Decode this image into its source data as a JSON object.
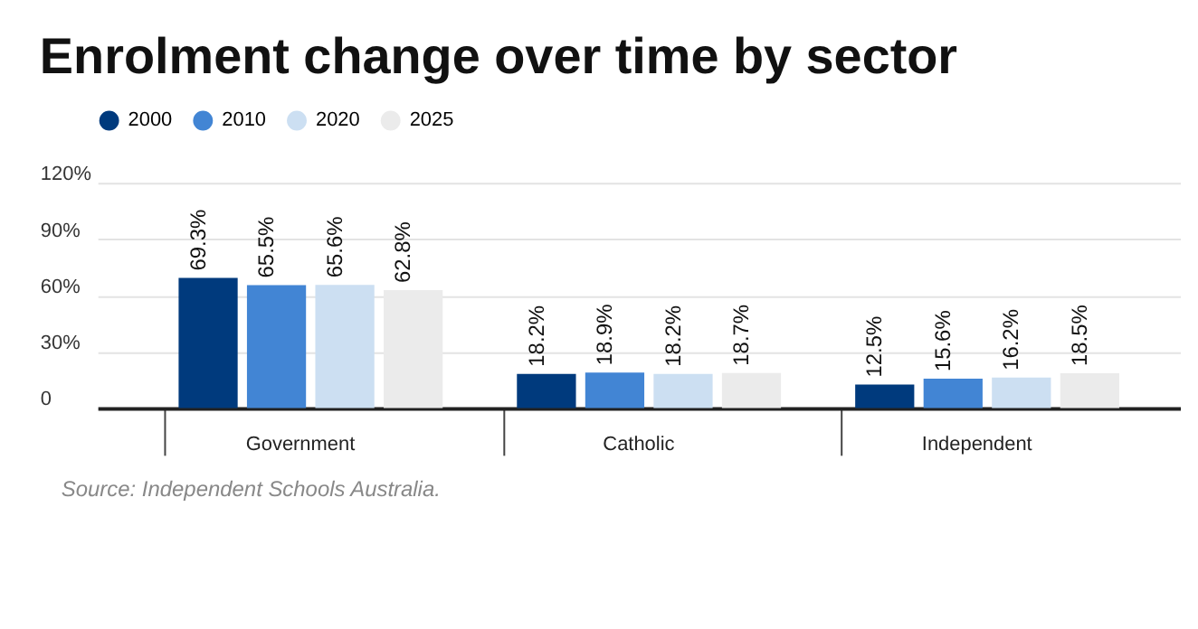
{
  "chart_data": {
    "type": "bar",
    "title": "Enrolment change over time by sector",
    "categories": [
      "Government",
      "Catholic",
      "Independent"
    ],
    "series": [
      {
        "name": "2000",
        "color": "#003a7d",
        "values": [
          69.3,
          18.2,
          12.5
        ],
        "value_labels": [
          "69.3%",
          "18.2%",
          "12.5%"
        ]
      },
      {
        "name": "2010",
        "color": "#4285d4",
        "values": [
          65.5,
          18.9,
          15.6
        ],
        "value_labels": [
          "65.5%",
          "18.9%",
          "15.6%"
        ]
      },
      {
        "name": "2020",
        "color": "#ccdff2",
        "values": [
          65.6,
          18.2,
          16.2
        ],
        "value_labels": [
          "65.6%",
          "18.2%",
          "16.2%"
        ]
      },
      {
        "name": "2025",
        "color": "#ebebeb",
        "values": [
          62.8,
          18.7,
          18.5
        ],
        "value_labels": [
          "62.8%",
          "18.7%",
          "18.5%"
        ]
      }
    ],
    "ylim": [
      0,
      120
    ],
    "yticks": [
      {
        "value": 0,
        "label": "0"
      },
      {
        "value": 30,
        "label": "30%"
      },
      {
        "value": 60,
        "label": "60%"
      },
      {
        "value": 90,
        "label": "90%"
      },
      {
        "value": 120,
        "label": "120%"
      }
    ],
    "grid": "y",
    "legend": "top",
    "annotations": [
      "Source: Independent Schools Australia."
    ]
  }
}
